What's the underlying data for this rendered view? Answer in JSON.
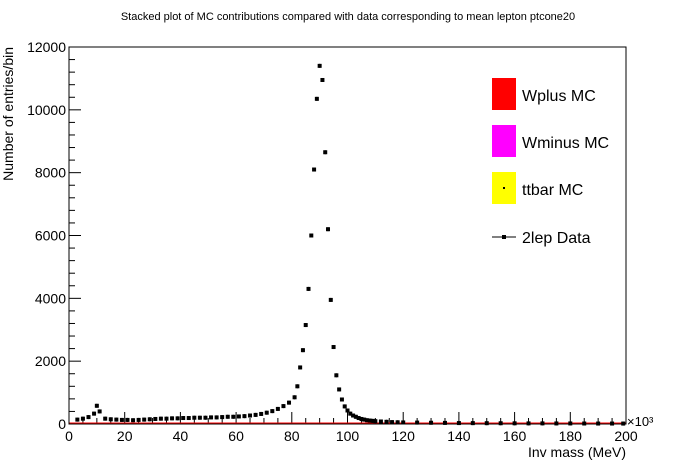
{
  "chart_data": {
    "type": "scatter",
    "title": "Stacked plot of MC contributions compared with data corresponding to mean lepton ptcone20",
    "xlabel": "Inv mass (MeV)",
    "ylabel": "Number of entries/bin",
    "x_multiplier": "×10³",
    "xlim": [
      0,
      200
    ],
    "ylim": [
      0,
      12000
    ],
    "x_major_ticks": [
      0,
      20,
      40,
      60,
      80,
      100,
      120,
      140,
      160,
      180,
      200
    ],
    "y_major_ticks": [
      0,
      2000,
      4000,
      6000,
      8000,
      10000,
      12000
    ],
    "legend_position": "top-right",
    "grid": false,
    "legend": [
      {
        "label": "Wplus MC",
        "color": "#ff0000",
        "kind": "box"
      },
      {
        "label": "Wminus MC",
        "color": "#ff00ff",
        "kind": "box"
      },
      {
        "label": "ttbar MC",
        "color": "#ffff00",
        "kind": "box"
      },
      {
        "label": "2lep Data",
        "color": "#000000",
        "kind": "marker"
      }
    ],
    "series": [
      {
        "name": "2lep Data",
        "color": "#000000",
        "x": [
          3,
          5,
          7,
          9,
          10,
          11,
          13,
          15,
          17,
          19,
          21,
          23,
          25,
          27,
          29,
          31,
          33,
          35,
          37,
          39,
          41,
          43,
          45,
          47,
          49,
          51,
          53,
          55,
          57,
          59,
          61,
          63,
          65,
          67,
          69,
          71,
          73,
          75,
          77,
          79,
          81,
          82,
          83,
          84,
          85,
          86,
          87,
          88,
          89,
          90,
          91,
          92,
          93,
          94,
          95,
          96,
          97,
          98,
          99,
          100,
          101,
          102,
          103,
          104,
          105,
          106,
          107,
          108,
          109,
          110,
          112,
          114,
          116,
          118,
          120,
          125,
          130,
          135,
          140,
          145,
          150,
          155,
          160,
          165,
          170,
          175,
          180,
          185,
          190,
          195,
          199
        ],
        "y": [
          140,
          170,
          220,
          330,
          580,
          400,
          170,
          150,
          140,
          130,
          130,
          120,
          130,
          140,
          150,
          160,
          170,
          170,
          180,
          180,
          190,
          190,
          200,
          200,
          200,
          210,
          210,
          220,
          230,
          230,
          240,
          250,
          270,
          290,
          320,
          360,
          410,
          480,
          570,
          680,
          850,
          1200,
          1800,
          2350,
          3150,
          4300,
          6000,
          8100,
          10350,
          11400,
          10950,
          8650,
          6200,
          3950,
          2450,
          1550,
          1100,
          780,
          560,
          430,
          330,
          270,
          230,
          190,
          160,
          140,
          120,
          110,
          100,
          90,
          80,
          70,
          60,
          55,
          50,
          45,
          40,
          35,
          30,
          28,
          26,
          24,
          22,
          20,
          20,
          18,
          18,
          16,
          15,
          15,
          14
        ]
      }
    ]
  }
}
